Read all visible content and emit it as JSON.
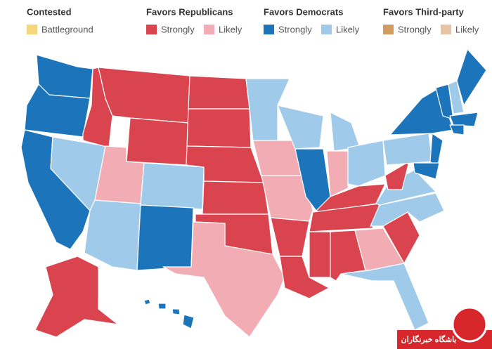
{
  "legend": {
    "groups": [
      {
        "title": "Contested",
        "items": [
          {
            "label": "Battleground",
            "color": "#f4d67c"
          }
        ]
      },
      {
        "title": "Favors Republicans",
        "items": [
          {
            "label": "Strongly",
            "color": "#d9444f"
          },
          {
            "label": "Likely",
            "color": "#f1adb3"
          }
        ]
      },
      {
        "title": "Favors Democrats",
        "items": [
          {
            "label": "Strongly",
            "color": "#1c74bb"
          },
          {
            "label": "Likely",
            "color": "#9fcae9"
          }
        ]
      },
      {
        "title": "Favors Third-party",
        "items": [
          {
            "label": "Strongly",
            "color": "#d29b5f"
          },
          {
            "label": "Likely",
            "color": "#e9c4a4"
          }
        ]
      }
    ]
  },
  "watermark": {
    "text": "باشگاه خبرنگاران"
  }
}
